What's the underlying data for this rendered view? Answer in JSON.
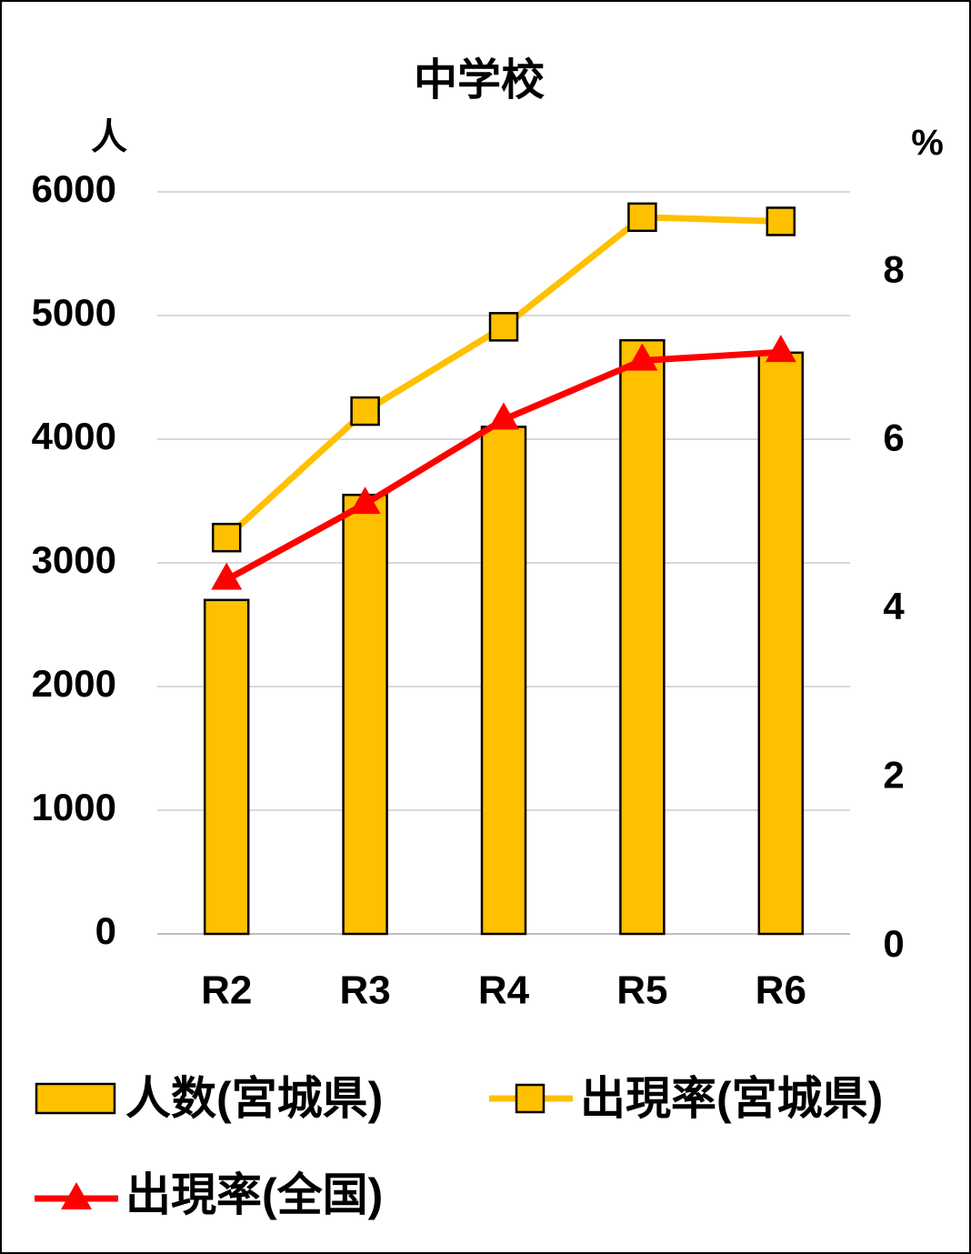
{
  "chart_data": {
    "type": "bar",
    "title": "中学校",
    "categories": [
      "R2",
      "R3",
      "R4",
      "R5",
      "R6"
    ],
    "y_left": {
      "unit": "人",
      "range": [
        0,
        6000
      ],
      "ticks": [
        "0",
        "1000",
        "2000",
        "3000",
        "4000",
        "5000",
        "6000"
      ]
    },
    "y_right": {
      "unit": "%",
      "range": [
        0,
        8.8
      ],
      "ticks": [
        "0",
        "2",
        "4",
        "6",
        "8"
      ]
    },
    "grid": true,
    "legend_position": "bottom",
    "series": [
      {
        "name": "人数(宮城県)",
        "type": "bar",
        "axis": "left",
        "color": "#FFC000",
        "values": [
          2700,
          3550,
          4100,
          4800,
          4700
        ]
      },
      {
        "name": "出現率(宮城県)",
        "type": "line",
        "axis": "right",
        "color": "#FFC000",
        "marker": "square",
        "values": [
          4.7,
          6.2,
          7.2,
          8.5,
          8.45
        ]
      },
      {
        "name": "出現率(全国)",
        "type": "line",
        "axis": "right",
        "color": "#FF0000",
        "marker": "triangle",
        "values": [
          4.2,
          5.1,
          6.1,
          6.8,
          6.9
        ]
      }
    ]
  }
}
